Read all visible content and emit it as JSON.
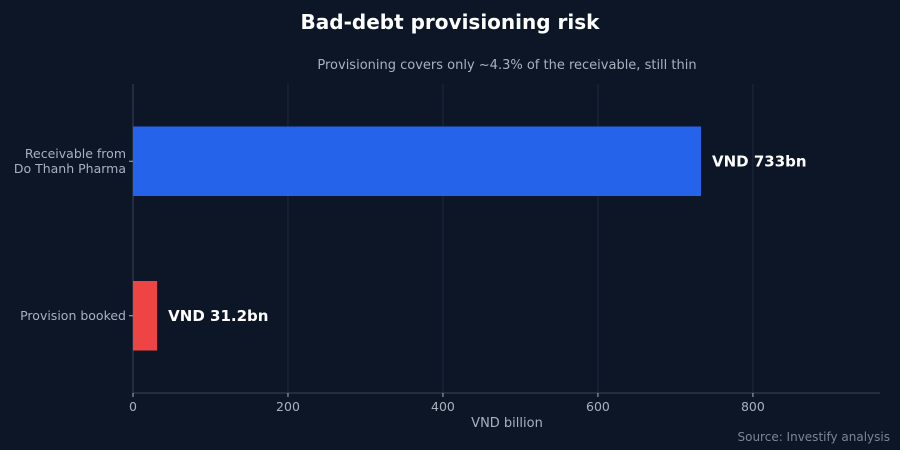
{
  "chart_data": {
    "type": "bar",
    "orientation": "horizontal",
    "title": "Bad-debt provisioning risk",
    "subtitle": "Provisioning covers only ~4.3% of the receivable, still thin",
    "categories": [
      "Receivable from\nDo Thanh Pharma",
      "Provision booked"
    ],
    "values": [
      733,
      31.2
    ],
    "data_labels": [
      "VND 733bn",
      "VND 31.2bn"
    ],
    "colors": [
      "#2563eb",
      "#ef4444"
    ],
    "xlabel": "VND billion",
    "xticks": [
      0,
      200,
      400,
      600,
      800
    ],
    "xlim": [
      0,
      964
    ],
    "grid": true,
    "source": "Source: Investify analysis"
  }
}
